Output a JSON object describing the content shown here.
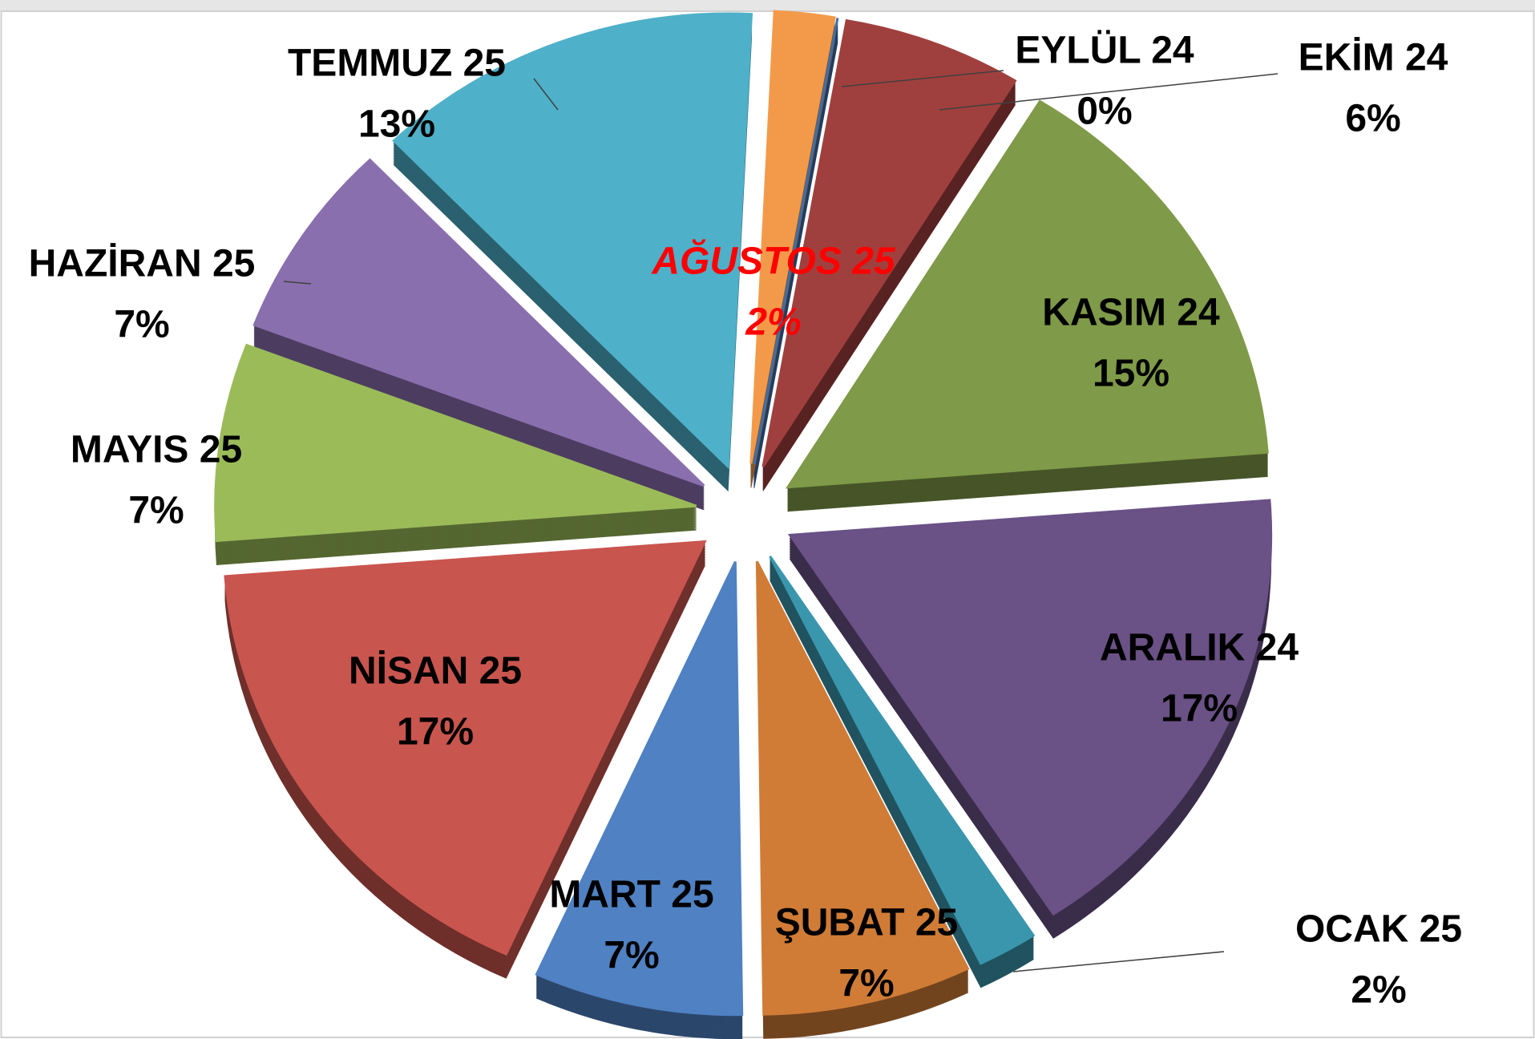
{
  "chart_data": {
    "type": "pie",
    "categories": [
      "EYLÜL 24",
      "EKİM 24",
      "KASIM 24",
      "ARALIK 24",
      "OCAK 25",
      "ŞUBAT 25",
      "MART 25",
      "NİSAN 25",
      "MAYIS 25",
      "HAZİRAN 25",
      "TEMMUZ 25",
      "AĞUSTOS 25"
    ],
    "values": [
      0,
      6,
      15,
      17,
      2,
      7,
      7,
      17,
      7,
      7,
      13,
      2
    ],
    "value_labels": [
      "0%",
      "6%",
      "15%",
      "17%",
      "2%",
      "7%",
      "7%",
      "17%",
      "7%",
      "7%",
      "13%",
      "2%"
    ],
    "colors": [
      "#3d6fad",
      "#a0403e",
      "#7f9a48",
      "#6a5186",
      "#3a96ad",
      "#d07c36",
      "#4f81c3",
      "#c9554f",
      "#9bbb59",
      "#8a6fae",
      "#4fb0c9",
      "#f39a4a"
    ],
    "label_colors": [
      "#000000",
      "#000000",
      "#000000",
      "#000000",
      "#000000",
      "#000000",
      "#000000",
      "#000000",
      "#000000",
      "#000000",
      "#000000",
      "#ff0000"
    ],
    "label_styles": [
      "normal",
      "normal",
      "normal",
      "normal",
      "normal",
      "normal",
      "normal",
      "normal",
      "normal",
      "normal",
      "normal",
      "italic"
    ]
  }
}
